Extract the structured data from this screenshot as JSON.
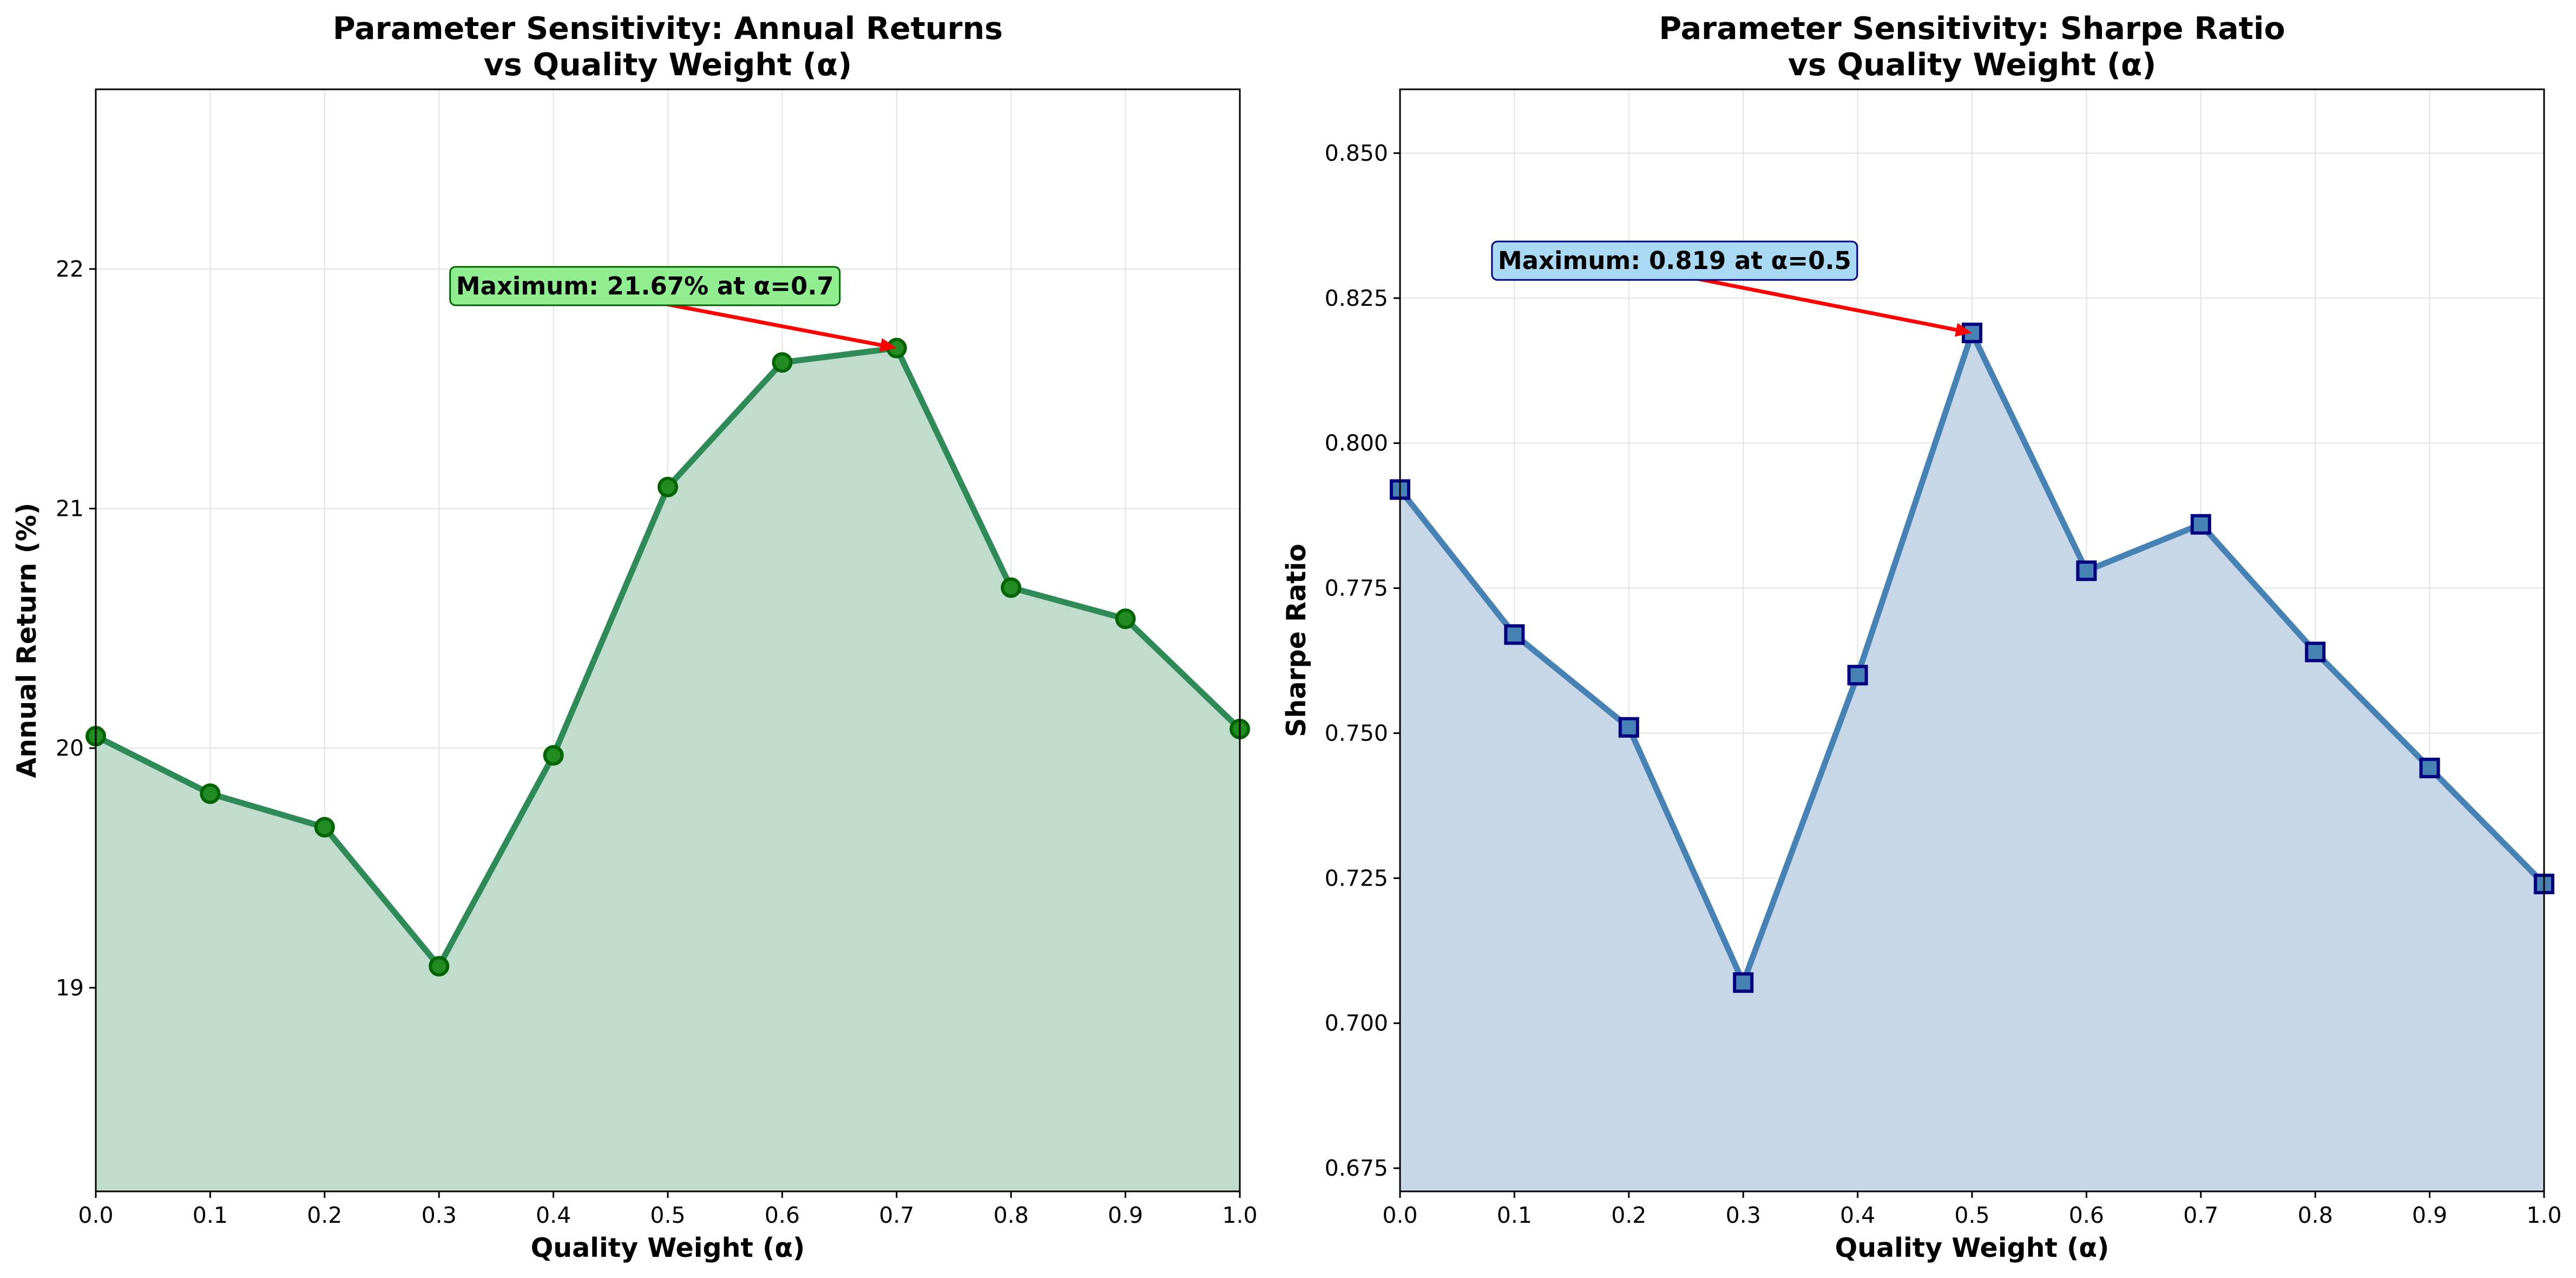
{
  "chart_data": [
    {
      "type": "line",
      "title_lines": [
        "Parameter Sensitivity: Annual Returns",
        "vs Quality Weight (α)"
      ],
      "xlabel": "Quality Weight (α)",
      "ylabel": "Annual Return (%)",
      "x": [
        0.0,
        0.1,
        0.2,
        0.3,
        0.4,
        0.5,
        0.6,
        0.7,
        0.8,
        0.9,
        1.0
      ],
      "x_tick_labels": [
        "0.0",
        "0.1",
        "0.2",
        "0.3",
        "0.4",
        "0.5",
        "0.6",
        "0.7",
        "0.8",
        "0.9",
        "1.0"
      ],
      "series": [
        {
          "values": [
            20.05,
            19.81,
            19.67,
            19.09,
            19.97,
            21.09,
            21.61,
            21.67,
            20.67,
            20.54,
            20.08
          ]
        }
      ],
      "xlim": [
        0.0,
        1.0
      ],
      "ylim": [
        18.15,
        22.75
      ],
      "y_ticks": [
        19,
        20,
        21,
        22
      ],
      "y_tick_labels": [
        "19",
        "20",
        "21",
        "22"
      ],
      "marker": "circle",
      "fill_under": true,
      "grid": true,
      "colors": {
        "line": "#2e8b57",
        "fill": "#c0dccd",
        "marker_face": "#228b22",
        "marker_edge": "#006400",
        "annotation_box": "#90ee90",
        "annotation_box_edge": "#006400",
        "arrow": "#ff0000"
      },
      "annotation": {
        "text": "Maximum: 21.67% at α=0.7",
        "point": [
          0.7,
          21.67
        ],
        "text_anchor_point": [
          0.48,
          21.93
        ]
      }
    },
    {
      "type": "line",
      "title_lines": [
        "Parameter Sensitivity: Sharpe Ratio",
        "vs Quality Weight (α)"
      ],
      "xlabel": "Quality Weight (α)",
      "ylabel": "Sharpe Ratio",
      "x": [
        0.0,
        0.1,
        0.2,
        0.3,
        0.4,
        0.5,
        0.6,
        0.7,
        0.8,
        0.9,
        1.0
      ],
      "x_tick_labels": [
        "0.0",
        "0.1",
        "0.2",
        "0.3",
        "0.4",
        "0.5",
        "0.6",
        "0.7",
        "0.8",
        "0.9",
        "1.0"
      ],
      "series": [
        {
          "values": [
            0.792,
            0.767,
            0.751,
            0.707,
            0.76,
            0.819,
            0.778,
            0.786,
            0.764,
            0.744,
            0.724
          ]
        }
      ],
      "xlim": [
        0.0,
        1.0
      ],
      "ylim": [
        0.671,
        0.861
      ],
      "y_ticks": [
        0.675,
        0.7,
        0.725,
        0.75,
        0.775,
        0.8,
        0.825,
        0.85
      ],
      "y_tick_labels": [
        "0.675",
        "0.700",
        "0.725",
        "0.750",
        "0.775",
        "0.800",
        "0.825",
        "0.850"
      ],
      "marker": "square",
      "fill_under": true,
      "grid": true,
      "colors": {
        "line": "#4682b4",
        "fill": "#c7d7e7",
        "marker_face": "#4682b4",
        "marker_edge": "#000080",
        "annotation_box": "#a9d8f2",
        "annotation_box_edge": "#000080",
        "arrow": "#ff0000"
      },
      "annotation": {
        "text": "Maximum: 0.819 at α=0.5",
        "point": [
          0.5,
          0.819
        ],
        "text_anchor_point": [
          0.24,
          0.8315
        ]
      }
    }
  ]
}
